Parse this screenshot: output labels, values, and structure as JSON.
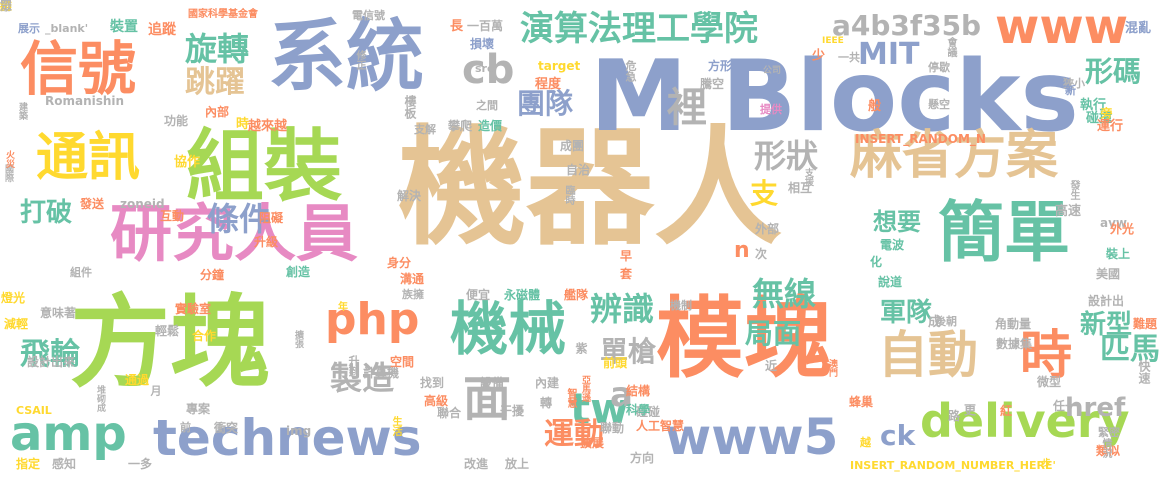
{
  "palette": {
    "green": "#a6d854",
    "tan": "#e5c494",
    "blue": "#8da0cb",
    "orange": "#fc8d62",
    "pink": "#e78ac3",
    "teal": "#66c2a5",
    "yellow": "#ffd92f",
    "gray": "#b3b3b3"
  },
  "words": [
    {
      "text": "機器人",
      "color": "tan"
    },
    {
      "text": "M Blocks",
      "color": "blue"
    },
    {
      "text": "方塊",
      "color": "green"
    },
    {
      "text": "模塊",
      "color": "orange"
    },
    {
      "text": "系統",
      "color": "blue"
    },
    {
      "text": "組裝",
      "color": "green"
    },
    {
      "text": "研究人員",
      "color": "pink"
    },
    {
      "text": "簡單",
      "color": "teal"
    },
    {
      "text": "信號",
      "color": "orange"
    },
    {
      "text": "通訊",
      "color": "yellow"
    },
    {
      "text": "麻省方案",
      "color": "tan"
    },
    {
      "text": "technews",
      "color": "blue"
    },
    {
      "text": "delivery",
      "color": "green"
    },
    {
      "text": "www5",
      "color": "blue"
    },
    {
      "text": "機械",
      "color": "teal"
    },
    {
      "text": "php",
      "color": "orange"
    },
    {
      "text": "amp",
      "color": "teal"
    },
    {
      "text": "自動",
      "color": "tan"
    },
    {
      "text": "時",
      "color": "orange"
    },
    {
      "text": "www",
      "color": "orange"
    },
    {
      "text": "演算法理工學院",
      "color": "teal"
    },
    {
      "text": "面",
      "color": "gray"
    },
    {
      "text": "cb",
      "color": "gray"
    },
    {
      "text": "旋轉",
      "color": "teal"
    },
    {
      "text": "跳躍",
      "color": "tan"
    },
    {
      "text": "a4b3f35b",
      "color": "gray"
    },
    {
      "text": "MIT",
      "color": "blue"
    },
    {
      "text": "tw",
      "color": "teal"
    },
    {
      "text": "製造",
      "color": "gray"
    },
    {
      "text": "飛輪",
      "color": "teal"
    },
    {
      "text": "運動",
      "color": "orange"
    },
    {
      "text": "辨識",
      "color": "teal"
    },
    {
      "text": "無線",
      "color": "teal"
    },
    {
      "text": "形狀",
      "color": "gray"
    },
    {
      "text": "條件",
      "color": "blue"
    },
    {
      "text": "團隊",
      "color": "blue"
    },
    {
      "text": "裡",
      "color": "gray"
    },
    {
      "text": "形碼",
      "color": "teal"
    },
    {
      "text": "打破",
      "color": "teal"
    },
    {
      "text": "單槍",
      "color": "gray"
    },
    {
      "text": "匹馬",
      "color": "teal"
    },
    {
      "text": "新型",
      "color": "teal"
    },
    {
      "text": "軍隊",
      "color": "teal"
    },
    {
      "text": "局面",
      "color": "teal"
    },
    {
      "text": "想要",
      "color": "teal"
    },
    {
      "text": "ck",
      "color": "blue"
    },
    {
      "text": "href",
      "color": "gray"
    },
    {
      "text": "a",
      "color": "gray"
    },
    {
      "text": "支",
      "color": "yellow"
    },
    {
      "text": "n",
      "color": "orange"
    },
    {
      "text": "展示",
      "color": "blue"
    },
    {
      "text": "_blank'",
      "color": "gray"
    },
    {
      "text": "追蹤",
      "color": "orange"
    },
    {
      "text": "裝置",
      "color": "teal"
    },
    {
      "text": "國家科學基金會",
      "color": "orange"
    },
    {
      "text": "電信號",
      "color": "gray"
    },
    {
      "text": "長",
      "color": "orange"
    },
    {
      "text": "一百萬",
      "color": "gray"
    },
    {
      "text": "損壞",
      "color": "blue"
    },
    {
      "text": "src",
      "color": "gray"
    },
    {
      "text": "target",
      "color": "yellow"
    },
    {
      "text": "程度",
      "color": "orange"
    },
    {
      "text": "方形",
      "color": "blue"
    },
    {
      "text": "騰空",
      "color": "gray"
    },
    {
      "text": "公司",
      "color": "gray"
    },
    {
      "text": "一共",
      "color": "gray"
    },
    {
      "text": "IEEE",
      "color": "yellow"
    },
    {
      "text": "停歇",
      "color": "gray"
    },
    {
      "text": "狹小",
      "color": "gray"
    },
    {
      "text": "新",
      "color": "blue"
    },
    {
      "text": "混亂",
      "color": "blue"
    },
    {
      "text": "Romanishin",
      "color": "gray"
    },
    {
      "text": "功能",
      "color": "gray"
    },
    {
      "text": "內部",
      "color": "orange"
    },
    {
      "text": "時",
      "color": "yellow"
    },
    {
      "text": "越來越",
      "color": "orange"
    },
    {
      "text": "支解",
      "color": "gray"
    },
    {
      "text": "攀爬",
      "color": "gray"
    },
    {
      "text": "造價",
      "color": "teal"
    },
    {
      "text": "之間",
      "color": "gray"
    },
    {
      "text": "INSERT_RANDOM_N",
      "color": "orange"
    },
    {
      "text": "提供",
      "color": "pink"
    },
    {
      "text": "般",
      "color": "orange"
    },
    {
      "text": "懸空",
      "color": "gray"
    },
    {
      "text": "執行",
      "color": "teal"
    },
    {
      "text": "碰撞",
      "color": "teal"
    },
    {
      "text": "運行",
      "color": "orange"
    },
    {
      "text": "成團",
      "color": "gray"
    },
    {
      "text": "自治",
      "color": "gray"
    },
    {
      "text": "協作",
      "color": "yellow"
    },
    {
      "text": "解決",
      "color": "gray"
    },
    {
      "text": "相互",
      "color": "gray"
    },
    {
      "text": "發送",
      "color": "orange"
    },
    {
      "text": "zoneid",
      "color": "gray"
    },
    {
      "text": "互動",
      "color": "orange"
    },
    {
      "text": "高速",
      "color": "gray"
    },
    {
      "text": "外部",
      "color": "gray"
    },
    {
      "text": "阻礙",
      "color": "orange"
    },
    {
      "text": "升級",
      "color": "orange"
    },
    {
      "text": "avw",
      "color": "gray"
    },
    {
      "text": "外光",
      "color": "orange"
    },
    {
      "text": "電波",
      "color": "teal"
    },
    {
      "text": "化",
      "color": "teal"
    },
    {
      "text": "說道",
      "color": "teal"
    },
    {
      "text": "裝上",
      "color": "teal"
    },
    {
      "text": "美國",
      "color": "gray"
    },
    {
      "text": "組件",
      "color": "gray"
    },
    {
      "text": "分鐘",
      "color": "orange"
    },
    {
      "text": "創造",
      "color": "teal"
    },
    {
      "text": "身分",
      "color": "orange"
    },
    {
      "text": "溝通",
      "color": "orange"
    },
    {
      "text": "族擁",
      "color": "gray"
    },
    {
      "text": "便宜",
      "color": "gray"
    },
    {
      "text": "永磁體",
      "color": "teal"
    },
    {
      "text": "早",
      "color": "orange"
    },
    {
      "text": "套",
      "color": "orange"
    },
    {
      "text": "次",
      "color": "gray"
    },
    {
      "text": "設計出",
      "color": "gray"
    },
    {
      "text": "燈光",
      "color": "yellow"
    },
    {
      "text": "意味著",
      "color": "gray"
    },
    {
      "text": "實驗室",
      "color": "orange"
    },
    {
      "text": "年",
      "color": "yellow"
    },
    {
      "text": "艦隊",
      "color": "orange"
    },
    {
      "text": "機制",
      "color": "gray"
    },
    {
      "text": "成",
      "color": "gray"
    },
    {
      "text": "後朝",
      "color": "gray"
    },
    {
      "text": "角動量",
      "color": "gray"
    },
    {
      "text": "數據集",
      "color": "gray"
    },
    {
      "text": "難題",
      "color": "orange"
    },
    {
      "text": "減輕",
      "color": "yellow"
    },
    {
      "text": "輕鬆",
      "color": "gray"
    },
    {
      "text": "合作",
      "color": "yellow"
    },
    {
      "text": "空間",
      "color": "orange"
    },
    {
      "text": "計算機",
      "color": "gray"
    },
    {
      "text": "前頭",
      "color": "yellow"
    },
    {
      "text": "近",
      "color": "gray"
    },
    {
      "text": "微型",
      "color": "gray"
    },
    {
      "text": "設計出來",
      "color": "gray"
    },
    {
      "text": "通過",
      "color": "yellow"
    },
    {
      "text": "專案",
      "color": "gray"
    },
    {
      "text": "找到",
      "color": "gray"
    },
    {
      "text": "設備",
      "color": "gray"
    },
    {
      "text": "內建",
      "color": "gray"
    },
    {
      "text": "結構",
      "color": "orange"
    },
    {
      "text": "碰碰",
      "color": "gray"
    },
    {
      "text": "蜂巢",
      "color": "orange"
    },
    {
      "text": "任一",
      "color": "gray"
    },
    {
      "text": "CSAIL",
      "color": "yellow"
    },
    {
      "text": "高級",
      "color": "orange"
    },
    {
      "text": "聯合",
      "color": "gray"
    },
    {
      "text": "轉",
      "color": "gray"
    },
    {
      "text": "干擾",
      "color": "gray"
    },
    {
      "text": "科學",
      "color": "teal"
    },
    {
      "text": "路",
      "color": "gray"
    },
    {
      "text": "更",
      "color": "gray"
    },
    {
      "text": "紅",
      "color": "orange"
    },
    {
      "text": "前",
      "color": "gray"
    },
    {
      "text": "衝突",
      "color": "gray"
    },
    {
      "text": "img",
      "color": "gray"
    },
    {
      "text": "聯動",
      "color": "gray"
    },
    {
      "text": "人工智慧",
      "color": "orange"
    },
    {
      "text": "緊密",
      "color": "gray"
    },
    {
      "text": "指定",
      "color": "yellow"
    },
    {
      "text": "感知",
      "color": "gray"
    },
    {
      "text": "一多",
      "color": "gray"
    },
    {
      "text": "改進",
      "color": "gray"
    },
    {
      "text": "放上",
      "color": "gray"
    },
    {
      "text": "擴展",
      "color": "orange"
    },
    {
      "text": "方向",
      "color": "gray"
    },
    {
      "text": "越",
      "color": "yellow"
    },
    {
      "text": "INSERT_RANDOM_NUMBER_HERE'",
      "color": "yellow"
    },
    {
      "text": "類似",
      "color": "orange"
    },
    {
      "text": "少",
      "color": "orange"
    },
    {
      "text": "危急",
      "color": "gray"
    },
    {
      "text": "旁",
      "color": "yellow"
    },
    {
      "text": "會議",
      "color": "gray"
    },
    {
      "text": "修正",
      "color": "gray"
    },
    {
      "text": "國際",
      "color": "gray"
    },
    {
      "text": "火災",
      "color": "orange"
    },
    {
      "text": "建築",
      "color": "gray"
    },
    {
      "text": "支援",
      "color": "gray"
    },
    {
      "text": "發生",
      "color": "gray"
    },
    {
      "text": "堆砌成",
      "color": "gray"
    },
    {
      "text": "快速",
      "color": "gray"
    },
    {
      "text": "智慧",
      "color": "orange"
    },
    {
      "text": "亞馬遜",
      "color": "orange"
    },
    {
      "text": "情況",
      "color": "gray"
    },
    {
      "text": "生活",
      "color": "yellow"
    },
    {
      "text": "擴張",
      "color": "gray"
    },
    {
      "text": "樓板",
      "color": "gray"
    },
    {
      "text": "臨時",
      "color": "gray"
    },
    {
      "text": "澳門",
      "color": "orange"
    },
    {
      "text": "升到",
      "color": "gray"
    },
    {
      "text": "月",
      "color": "gray"
    },
    {
      "text": "紫",
      "color": "gray"
    },
    {
      "text": "步",
      "color": "yellow"
    },
    {
      "text": "扔",
      "color": "gray"
    },
    {
      "text": "維",
      "color": "yellow"
    },
    {
      "text": "眾",
      "color": "gray"
    }
  ]
}
